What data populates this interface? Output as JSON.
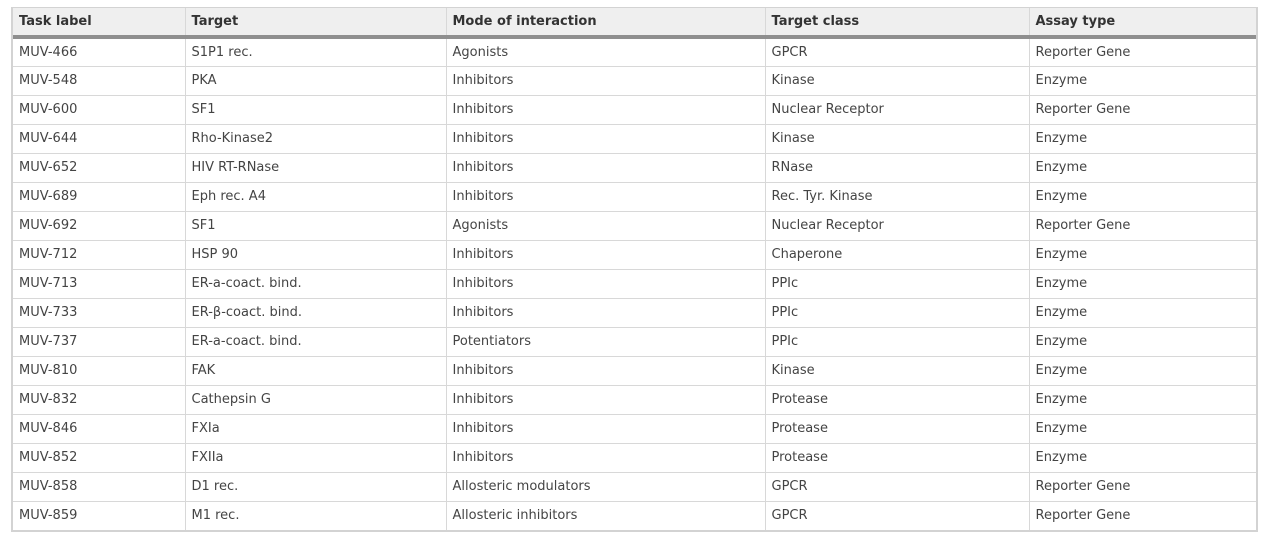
{
  "table": {
    "headers": [
      "Task label",
      "Target",
      "Mode of interaction",
      "Target class",
      "Assay type"
    ],
    "rows": [
      [
        "MUV-466",
        "S1P1 rec.",
        "Agonists",
        "GPCR",
        "Reporter Gene"
      ],
      [
        "MUV-548",
        "PKA",
        "Inhibitors",
        "Kinase",
        "Enzyme"
      ],
      [
        "MUV-600",
        "SF1",
        "Inhibitors",
        "Nuclear Receptor",
        "Reporter Gene"
      ],
      [
        "MUV-644",
        "Rho-Kinase2",
        "Inhibitors",
        "Kinase",
        "Enzyme"
      ],
      [
        "MUV-652",
        "HIV RT-RNase",
        "Inhibitors",
        "RNase",
        "Enzyme"
      ],
      [
        "MUV-689",
        "Eph rec. A4",
        "Inhibitors",
        "Rec. Tyr. Kinase",
        "Enzyme"
      ],
      [
        "MUV-692",
        "SF1",
        "Agonists",
        "Nuclear Receptor",
        "Reporter Gene"
      ],
      [
        "MUV-712",
        "HSP 90",
        "Inhibitors",
        "Chaperone",
        "Enzyme"
      ],
      [
        "MUV-713",
        "ER-a-coact. bind.",
        "Inhibitors",
        "PPIc",
        "Enzyme"
      ],
      [
        "MUV-733",
        "ER-β-coact. bind.",
        "Inhibitors",
        "PPIc",
        "Enzyme"
      ],
      [
        "MUV-737",
        "ER-a-coact. bind.",
        "Potentiators",
        "PPIc",
        "Enzyme"
      ],
      [
        "MUV-810",
        "FAK",
        "Inhibitors",
        "Kinase",
        "Enzyme"
      ],
      [
        "MUV-832",
        "Cathepsin G",
        "Inhibitors",
        "Protease",
        "Enzyme"
      ],
      [
        "MUV-846",
        "FXIa",
        "Inhibitors",
        "Protease",
        "Enzyme"
      ],
      [
        "MUV-852",
        "FXIIa",
        "Inhibitors",
        "Protease",
        "Enzyme"
      ],
      [
        "MUV-858",
        "D1 rec.",
        "Allosteric modulators",
        "GPCR",
        "Reporter Gene"
      ],
      [
        "MUV-859",
        "M1 rec.",
        "Allosteric inhibitors",
        "GPCR",
        "Reporter Gene"
      ]
    ]
  }
}
